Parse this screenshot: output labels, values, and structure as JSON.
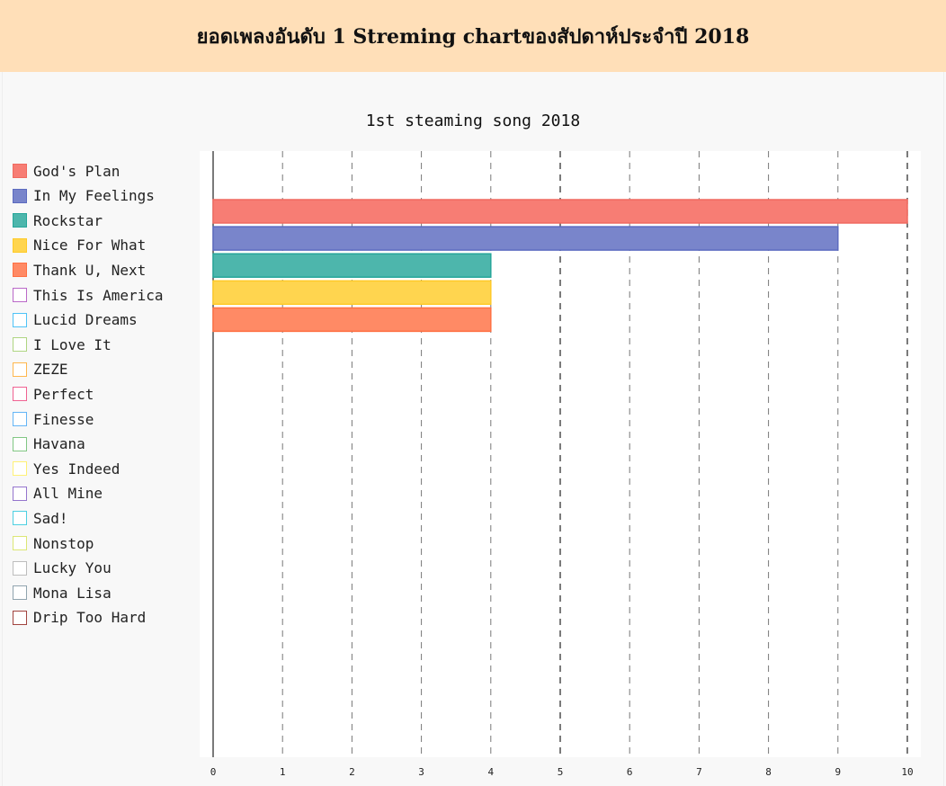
{
  "header": {
    "title": "ยอดเพลงอันดับ 1 Streming chartของสัปดาห์ประจำปี 2018"
  },
  "chart_data": {
    "type": "bar",
    "orientation": "horizontal",
    "title": "1st steaming song 2018",
    "xlabel": "",
    "ylabel": "",
    "xlim": [
      0,
      10
    ],
    "xticks": [
      "0",
      "1",
      "2",
      "3",
      "4",
      "5",
      "6",
      "7",
      "8",
      "9",
      "10"
    ],
    "legend_position": "left",
    "grid": true,
    "series": [
      {
        "name": "God's Plan",
        "value": 10,
        "color": "#f77d74",
        "border": "#f06a60"
      },
      {
        "name": "In My Feelings",
        "value": 9,
        "color": "#7985cb",
        "border": "#5c6bc0"
      },
      {
        "name": "Rockstar",
        "value": 4,
        "color": "#4db6ac",
        "border": "#26a69a"
      },
      {
        "name": "Nice For What",
        "value": 4,
        "color": "#ffd54f",
        "border": "#ffca28"
      },
      {
        "name": "Thank U, Next",
        "value": 4,
        "color": "#ff8a65",
        "border": "#ff7043"
      },
      {
        "name": "This Is America",
        "value": 0,
        "color": "#ffffff",
        "border": "#ba68c8"
      },
      {
        "name": "Lucid Dreams",
        "value": 0,
        "color": "#ffffff",
        "border": "#4fc3f7"
      },
      {
        "name": "I Love It",
        "value": 0,
        "color": "#ffffff",
        "border": "#aed581"
      },
      {
        "name": "ZEZE",
        "value": 0,
        "color": "#ffffff",
        "border": "#ffb74d"
      },
      {
        "name": "Perfect",
        "value": 0,
        "color": "#ffffff",
        "border": "#f06292"
      },
      {
        "name": "Finesse",
        "value": 0,
        "color": "#ffffff",
        "border": "#64b5f6"
      },
      {
        "name": "Havana",
        "value": 0,
        "color": "#ffffff",
        "border": "#81c784"
      },
      {
        "name": "Yes Indeed",
        "value": 0,
        "color": "#ffffff",
        "border": "#fff176"
      },
      {
        "name": "All Mine",
        "value": 0,
        "color": "#ffffff",
        "border": "#9575cd"
      },
      {
        "name": "Sad!",
        "value": 0,
        "color": "#ffffff",
        "border": "#4dd0e1"
      },
      {
        "name": "Nonstop",
        "value": 0,
        "color": "#ffffff",
        "border": "#dce775"
      },
      {
        "name": "Lucky You",
        "value": 0,
        "color": "#ffffff",
        "border": "#bdbdbd"
      },
      {
        "name": "Mona Lisa",
        "value": 0,
        "color": "#ffffff",
        "border": "#90a4ae"
      },
      {
        "name": "Drip Too Hard",
        "value": 0,
        "color": "#ffffff",
        "border": "#a1443f"
      }
    ]
  }
}
